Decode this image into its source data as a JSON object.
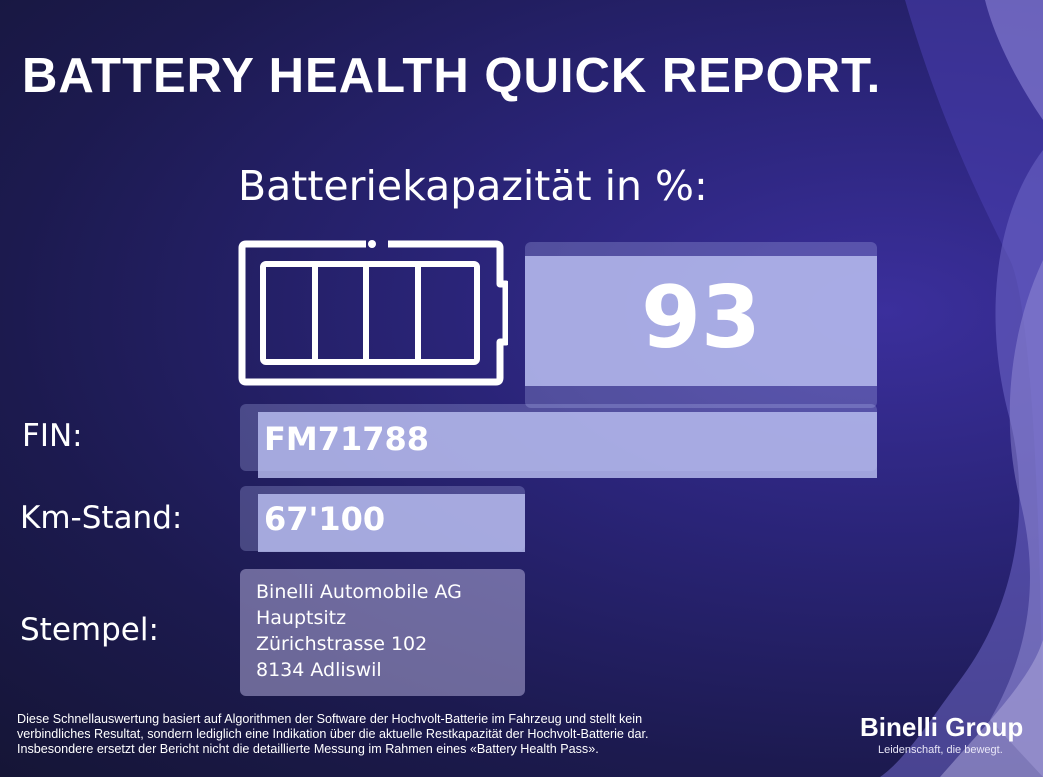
{
  "title": "BATTERY HEALTH QUICK REPORT.",
  "capacity": {
    "label": "Batteriekapazität in %:",
    "value": "93"
  },
  "fields": {
    "fin_label": "FIN:",
    "fin_value": "FM71788",
    "km_label": "Km-Stand:",
    "km_value": "67'100",
    "stamp_label": "Stempel:",
    "stamp_lines": [
      "Binelli Automobile AG",
      "Hauptsitz",
      "Zürichstrasse 102",
      "8134 Adliswil"
    ]
  },
  "disclaimer": [
    "Diese Schnellauswertung basiert auf Algorithmen der Software der Hochvolt-Batterie im Fahrzeug und stellt kein",
    "verbindliches Resultat, sondern lediglich eine Indikation über die aktuelle Restkapazität der Hochvolt-Batterie dar.",
    "Insbesondere ersetzt der Bericht nicht die detaillierte Messung im Rahmen eines «Battery Health Pass»."
  ],
  "brand": {
    "name": "Binelli Group",
    "tagline": "Leidenschaft, die bewegt."
  },
  "icons": {
    "battery": "battery-icon"
  },
  "colors": {
    "background": "#2a2478",
    "highlight": "#b9bef0",
    "wave": "#8a82d8"
  }
}
